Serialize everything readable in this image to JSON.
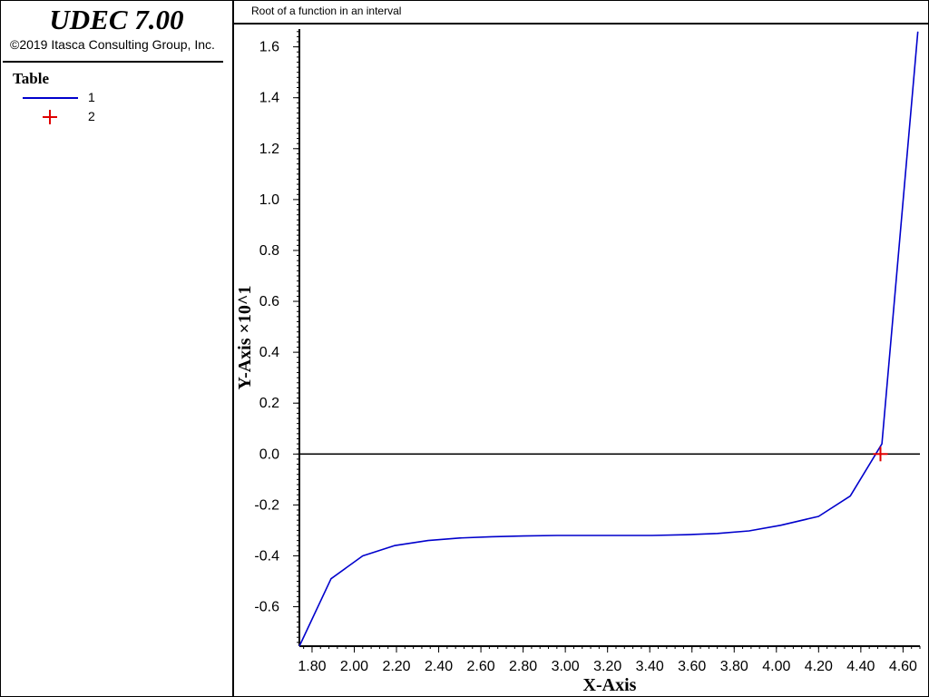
{
  "app": {
    "title": "UDEC 7.00",
    "copyright": "©2019 Itasca Consulting Group, Inc."
  },
  "legend": {
    "heading": "Table",
    "items": [
      {
        "label": "1",
        "kind": "line",
        "color": "#0000cc"
      },
      {
        "label": "2",
        "kind": "cross-marker",
        "color": "#e00000"
      }
    ]
  },
  "plot": {
    "title": "Root of a function in an interval"
  },
  "chart_data": {
    "type": "line",
    "xlabel": "X-Axis",
    "ylabel": "Y-Axis ×10^1",
    "xlim": [
      1.74,
      4.68
    ],
    "ylim": [
      -0.755,
      1.67
    ],
    "x_ticks": [
      1.8,
      2.0,
      2.2,
      2.4,
      2.6,
      2.8,
      3.0,
      3.2,
      3.4,
      3.6,
      3.8,
      4.0,
      4.2,
      4.4,
      4.6
    ],
    "x_tick_labels": [
      "1.80",
      "2.00",
      "2.20",
      "2.40",
      "2.60",
      "2.80",
      "3.00",
      "3.20",
      "3.40",
      "3.60",
      "3.80",
      "4.00",
      "4.20",
      "4.40",
      "4.60"
    ],
    "y_ticks": [
      -0.6,
      -0.4,
      -0.2,
      0.0,
      0.2,
      0.4,
      0.6,
      0.8,
      1.0,
      1.2,
      1.4,
      1.6
    ],
    "y_tick_labels": [
      "-0.6",
      "-0.4",
      "-0.2",
      "0.0",
      "0.2",
      "0.4",
      "0.6",
      "0.8",
      "1.0",
      "1.2",
      "1.4",
      "1.6"
    ],
    "zero_line": true,
    "grid": false,
    "series": [
      {
        "name": "1",
        "kind": "line",
        "color": "#0000cc",
        "x": [
          1.74,
          1.89,
          2.04,
          2.19,
          2.35,
          2.5,
          2.65,
          2.8,
          2.96,
          3.11,
          3.26,
          3.41,
          3.57,
          3.72,
          3.87,
          4.02,
          4.2,
          4.35,
          4.5,
          4.67
        ],
        "y": [
          -0.755,
          -0.49,
          -0.4,
          -0.36,
          -0.34,
          -0.33,
          -0.325,
          -0.322,
          -0.32,
          -0.32,
          -0.32,
          -0.32,
          -0.317,
          -0.312,
          -0.302,
          -0.28,
          -0.245,
          -0.165,
          0.04,
          1.66
        ]
      },
      {
        "name": "2",
        "kind": "marker",
        "color": "#e00000",
        "x": [
          4.493
        ],
        "y": [
          0.0
        ]
      }
    ]
  }
}
